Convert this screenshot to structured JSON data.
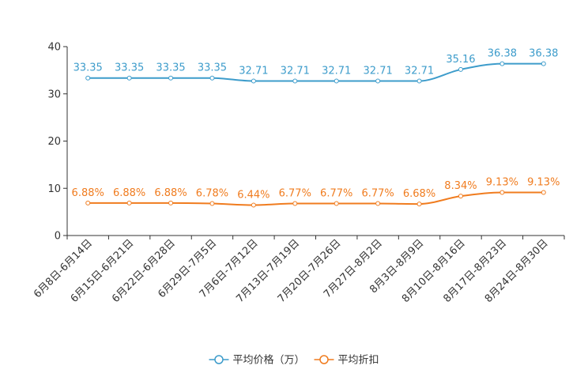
{
  "chart_data": {
    "type": "line",
    "title": "",
    "xlabel": "",
    "ylabel": "",
    "ylim": [
      0,
      40
    ],
    "yticks": [
      0,
      10,
      20,
      30,
      40
    ],
    "grid": false,
    "legend_position": "bottom-center",
    "categories": [
      "6月8日-6月14日",
      "6月15日-6月21日",
      "6月22日-6月28日",
      "6月29日-7月5日",
      "7月6日-7月12日",
      "7月13日-7月19日",
      "7月20日-7月26日",
      "7月27日-8月2日",
      "8月3日-8月9日",
      "8月10日-8月16日",
      "8月17日-8月23日",
      "8月24日-8月30日"
    ],
    "series": [
      {
        "name": "平均价格（万）",
        "color": "#3d9ccb",
        "values": [
          33.35,
          33.35,
          33.35,
          33.35,
          32.71,
          32.71,
          32.71,
          32.71,
          32.71,
          35.16,
          36.38,
          36.38
        ],
        "labels": [
          "33.35",
          "33.35",
          "33.35",
          "33.35",
          "32.71",
          "32.71",
          "32.71",
          "32.71",
          "32.71",
          "35.16",
          "36.38",
          "36.38"
        ]
      },
      {
        "name": "平均折扣",
        "color": "#f07c1f",
        "values": [
          6.88,
          6.88,
          6.88,
          6.78,
          6.44,
          6.77,
          6.77,
          6.77,
          6.68,
          8.34,
          9.13,
          9.13
        ],
        "labels": [
          "6.88%",
          "6.88%",
          "6.88%",
          "6.78%",
          "6.44%",
          "6.77%",
          "6.77%",
          "6.77%",
          "6.68%",
          "8.34%",
          "9.13%",
          "9.13%"
        ]
      }
    ]
  }
}
